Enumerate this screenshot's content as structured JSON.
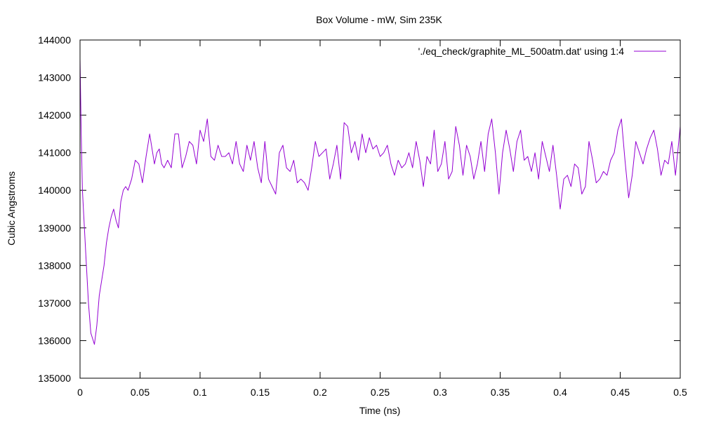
{
  "chart_data": {
    "type": "line",
    "title": "Box Volume - mW, Sim 235K",
    "xlabel": "Time (ns)",
    "ylabel": "Cubic Angstroms",
    "xlim": [
      0,
      0.5
    ],
    "ylim": [
      135000,
      144000
    ],
    "xticks": [
      "0",
      "0.05",
      "0.1",
      "0.15",
      "0.2",
      "0.25",
      "0.3",
      "0.35",
      "0.4",
      "0.45",
      "0.5"
    ],
    "yticks": [
      "135000",
      "136000",
      "137000",
      "138000",
      "139000",
      "140000",
      "141000",
      "142000",
      "143000",
      "144000"
    ],
    "grid": false,
    "legend_position": "top-right",
    "series": [
      {
        "name": "'./eq_check/graphite_ML_500atm.dat' using 1:4",
        "color": "#9400D3",
        "x": [
          0,
          0.001,
          0.002,
          0.003,
          0.005,
          0.007,
          0.009,
          0.011,
          0.012,
          0.014,
          0.016,
          0.018,
          0.02,
          0.022,
          0.024,
          0.026,
          0.028,
          0.03,
          0.032,
          0.034,
          0.036,
          0.038,
          0.04,
          0.043,
          0.046,
          0.049,
          0.052,
          0.055,
          0.058,
          0.06,
          0.062,
          0.064,
          0.066,
          0.068,
          0.07,
          0.073,
          0.076,
          0.079,
          0.082,
          0.085,
          0.088,
          0.091,
          0.094,
          0.097,
          0.1,
          0.103,
          0.106,
          0.109,
          0.112,
          0.115,
          0.118,
          0.121,
          0.124,
          0.127,
          0.13,
          0.133,
          0.136,
          0.139,
          0.142,
          0.145,
          0.148,
          0.151,
          0.154,
          0.157,
          0.16,
          0.163,
          0.166,
          0.169,
          0.172,
          0.175,
          0.178,
          0.181,
          0.184,
          0.187,
          0.19,
          0.193,
          0.196,
          0.199,
          0.202,
          0.205,
          0.208,
          0.211,
          0.214,
          0.217,
          0.22,
          0.223,
          0.226,
          0.229,
          0.232,
          0.235,
          0.238,
          0.241,
          0.244,
          0.247,
          0.25,
          0.253,
          0.256,
          0.259,
          0.262,
          0.265,
          0.268,
          0.271,
          0.274,
          0.277,
          0.28,
          0.283,
          0.286,
          0.289,
          0.292,
          0.295,
          0.298,
          0.301,
          0.304,
          0.307,
          0.31,
          0.313,
          0.316,
          0.319,
          0.322,
          0.325,
          0.328,
          0.331,
          0.334,
          0.337,
          0.34,
          0.343,
          0.346,
          0.349,
          0.352,
          0.355,
          0.358,
          0.361,
          0.364,
          0.367,
          0.37,
          0.373,
          0.376,
          0.379,
          0.382,
          0.385,
          0.388,
          0.391,
          0.394,
          0.397,
          0.4,
          0.403,
          0.406,
          0.409,
          0.412,
          0.415,
          0.418,
          0.421,
          0.424,
          0.427,
          0.43,
          0.433,
          0.436,
          0.439,
          0.442,
          0.445,
          0.448,
          0.451,
          0.454,
          0.457,
          0.46,
          0.463,
          0.466,
          0.469,
          0.472,
          0.475,
          0.478,
          0.481,
          0.484,
          0.487,
          0.49,
          0.493,
          0.496,
          0.5
        ],
        "values": [
          143500,
          141500,
          140000,
          139400,
          138200,
          137000,
          136200,
          136000,
          135900,
          136400,
          137200,
          137600,
          138000,
          138600,
          139000,
          139300,
          139500,
          139200,
          139000,
          139700,
          140000,
          140100,
          140000,
          140300,
          140800,
          140700,
          140200,
          140900,
          141500,
          141100,
          140700,
          141000,
          141100,
          140700,
          140600,
          140800,
          140600,
          141500,
          141500,
          140600,
          140900,
          141300,
          141200,
          140700,
          141600,
          141300,
          141900,
          140900,
          140800,
          141200,
          140900,
          140900,
          141000,
          140700,
          141300,
          140700,
          140500,
          141200,
          140800,
          141300,
          140600,
          140200,
          141300,
          140300,
          140100,
          139900,
          141000,
          141200,
          140600,
          140500,
          140800,
          140200,
          140300,
          140200,
          140000,
          140600,
          141300,
          140900,
          141000,
          141100,
          140300,
          140700,
          141200,
          140300,
          141800,
          141700,
          141000,
          141300,
          140800,
          141500,
          141000,
          141400,
          141100,
          141200,
          140900,
          141000,
          141200,
          140700,
          140400,
          140800,
          140600,
          140700,
          141000,
          140600,
          141300,
          140800,
          140100,
          140900,
          140700,
          141600,
          140500,
          140700,
          141300,
          140300,
          140500,
          141700,
          141200,
          140400,
          141200,
          140900,
          140300,
          140700,
          141300,
          140500,
          141500,
          141900,
          141000,
          139900,
          141000,
          141600,
          141100,
          140500,
          141300,
          141600,
          140800,
          140900,
          140500,
          141000,
          140300,
          141300,
          140900,
          140500,
          141200,
          140400,
          139500,
          140300,
          140400,
          140100,
          140700,
          140600,
          139900,
          140100,
          141300,
          140800,
          140200,
          140300,
          140500,
          140400,
          140800,
          141000,
          141600,
          141900,
          140800,
          139800,
          140400,
          141300,
          141000,
          140700,
          141100,
          141400,
          141600,
          141100,
          140400,
          140800,
          140700,
          141300,
          140400,
          141700
        ]
      }
    ]
  }
}
